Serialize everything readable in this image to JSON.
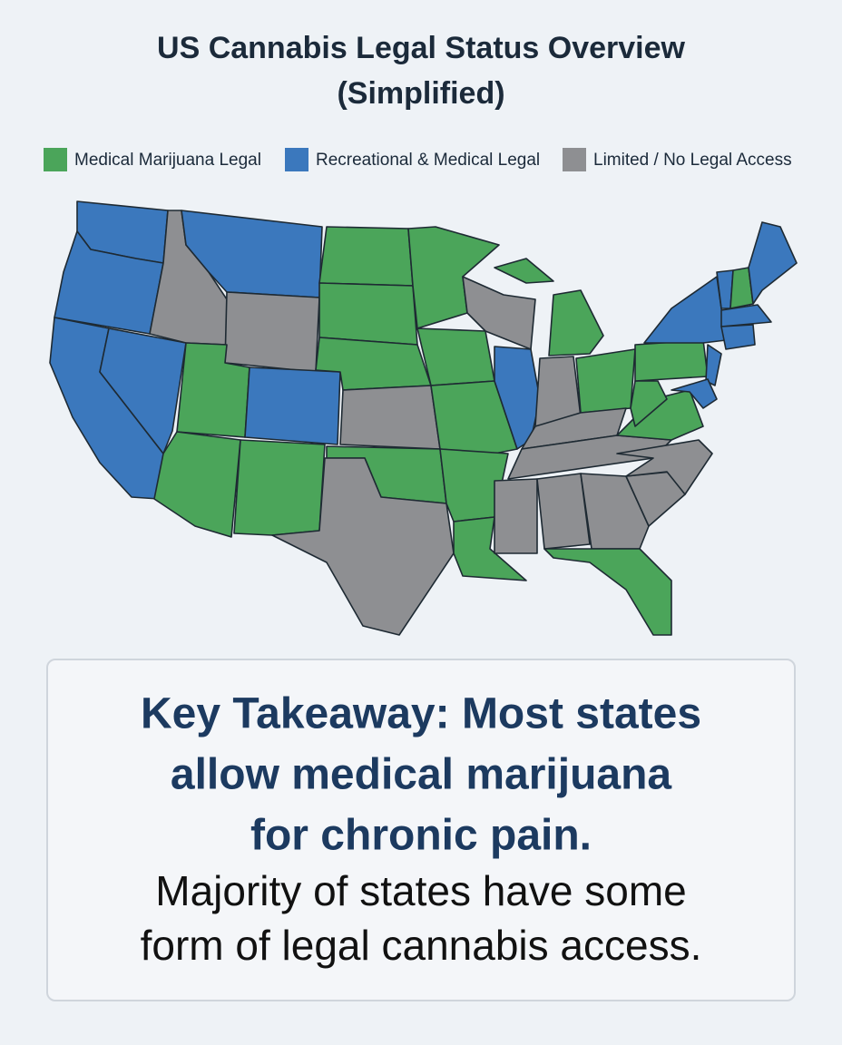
{
  "header": {
    "title": [
      "US Cannabis Legal Status Overview",
      "(Simplified)"
    ]
  },
  "legend": [
    {
      "label": "Medical Marijuana Legal",
      "color": "#4ba55a"
    },
    {
      "label": "Recreational & Medical Legal",
      "color": "#3b78bd"
    },
    {
      "label": "Limited / No Legal Access",
      "color": "#8e8f92"
    }
  ],
  "takeaway": {
    "heading": [
      "Key Takeaway: Most states",
      "allow medical marijuana",
      "for chronic pain."
    ],
    "body": [
      "Majority of states have some",
      "form of legal cannabis access."
    ]
  }
}
